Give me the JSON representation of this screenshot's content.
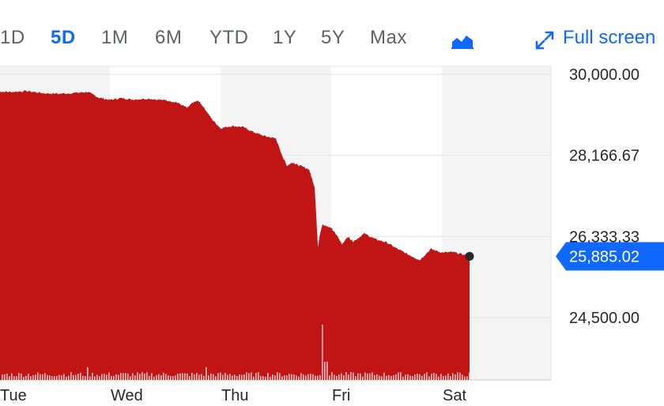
{
  "toolbar": {
    "ranges": [
      "1D",
      "5D",
      "1M",
      "6M",
      "YTD",
      "1Y",
      "5Y",
      "Max"
    ],
    "active_range": "5D",
    "chart_type_icon": "mountain-chart-icon",
    "fullscreen_icon": "expand-arrows-icon",
    "fullscreen_label": "Full screen"
  },
  "colors": {
    "area": "#c11515",
    "accent": "#0f69ff",
    "volume": "#f3c4c4",
    "band": "#f4f4f4"
  },
  "chart_data": {
    "type": "area",
    "title": "",
    "xlabel": "",
    "ylabel": "",
    "ylim": [
      23500,
      30000
    ],
    "y_ticks": [
      30000,
      28166.67,
      26333.33,
      24500
    ],
    "y_tick_labels": [
      "30,000.00",
      "28,166.67",
      "26,333.33",
      "24,500.00"
    ],
    "x_tick_labels": [
      "Tue",
      "Wed",
      "Thu",
      "Fri",
      "Sat"
    ],
    "x_range": [
      0,
      4.3
    ],
    "x_ticks": [
      0,
      1,
      2,
      3,
      4
    ],
    "current_value": 25885.02,
    "current_label": "25,885.02",
    "grid": true,
    "series": [
      {
        "x": [
          0,
          0.1,
          0.25,
          0.4,
          0.55,
          0.7,
          0.8,
          0.9,
          1.0,
          1.1,
          1.2,
          1.35,
          1.5,
          1.6,
          1.7,
          1.75,
          1.8,
          1.85,
          1.92,
          2.0,
          2.1,
          2.2,
          2.3,
          2.4,
          2.5,
          2.55,
          2.6,
          2.65,
          2.7,
          2.8,
          2.85,
          2.88,
          2.9,
          2.92,
          2.95,
          3.0,
          3.05,
          3.1,
          3.15,
          3.2,
          3.3,
          3.4,
          3.5,
          3.6,
          3.7,
          3.8,
          3.9,
          4.0,
          4.1,
          4.2,
          4.25
        ],
        "values": [
          29610,
          29600,
          29620,
          29570,
          29560,
          29580,
          29600,
          29470,
          29420,
          29460,
          29430,
          29450,
          29410,
          29370,
          29240,
          29360,
          29400,
          29250,
          28990,
          28780,
          28830,
          28810,
          28690,
          28600,
          28550,
          28200,
          27930,
          28010,
          27950,
          27850,
          27450,
          26100,
          26400,
          26600,
          26580,
          26520,
          26360,
          26160,
          26330,
          26220,
          26400,
          26270,
          26200,
          26050,
          25920,
          25800,
          26050,
          25970,
          25980,
          25920,
          25885
        ]
      }
    ]
  }
}
